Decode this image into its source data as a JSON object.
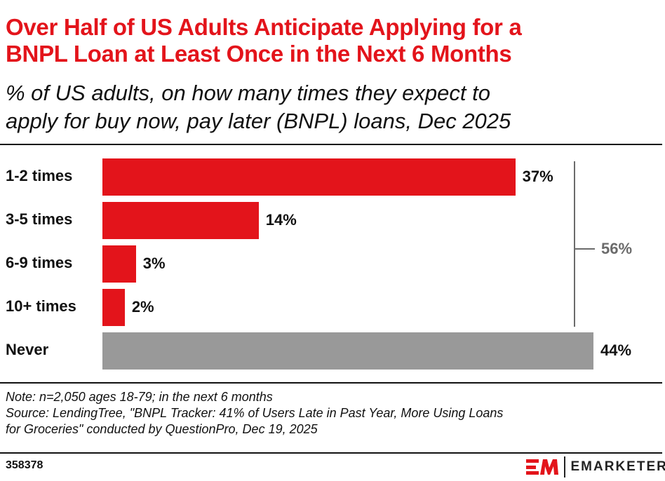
{
  "header": {
    "title_line1": "Over Half of US Adults Anticipate Applying for a",
    "title_line2": "BNPL Loan at Least Once in the Next 6 Months",
    "subtitle_line1": "% of US adults, on how many times they expect to",
    "subtitle_line2": "apply for buy now, pay later (BNPL) loans, Dec 2025"
  },
  "chart_data": {
    "type": "bar",
    "orientation": "horizontal",
    "categories": [
      "1-2 times",
      "3-5 times",
      "6-9 times",
      "10+ times",
      "Never"
    ],
    "values": [
      37,
      14,
      3,
      2,
      44
    ],
    "labels": [
      "37%",
      "14%",
      "3%",
      "2%",
      "44%"
    ],
    "colors": [
      "#e3141b",
      "#e3141b",
      "#e3141b",
      "#e3141b",
      "#999999"
    ],
    "bracket": {
      "covers": [
        "1-2 times",
        "3-5 times",
        "6-9 times",
        "10+ times"
      ],
      "label": "56%",
      "color": "#6b6b6b"
    },
    "xlim": [
      0,
      44
    ],
    "grid": false
  },
  "footer": {
    "note": "Note: n=2,050 ages 18-79; in the next 6 months",
    "source_line1": "Source: LendingTree, \"BNPL Tracker: 41% of Users Late in Past Year, More Using Loans",
    "source_line2": "for Groceries\" conducted by QuestionPro, Dec 19, 2025",
    "chart_id": "358378",
    "brand": "EMARKETER",
    "brand_color": "#e3141b"
  }
}
